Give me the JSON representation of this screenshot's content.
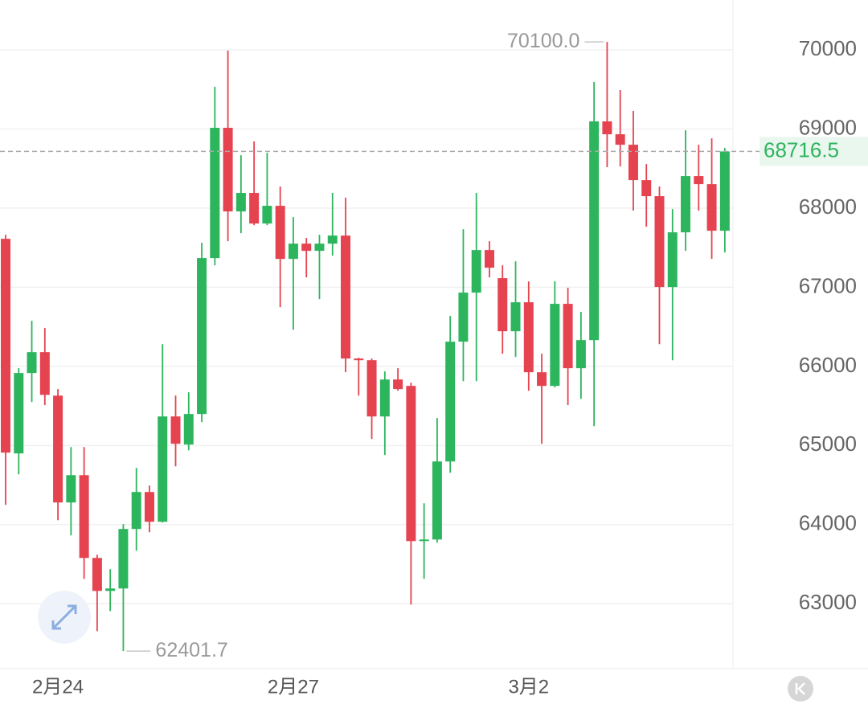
{
  "chart_data": {
    "type": "candlestick",
    "categories": [
      null,
      null,
      null,
      null,
      "2月24",
      null,
      null,
      null,
      null,
      null,
      null,
      null,
      null,
      null,
      null,
      null,
      null,
      null,
      null,
      null,
      null,
      null,
      "2月27",
      null,
      null,
      null,
      null,
      null,
      null,
      null,
      null,
      null,
      null,
      null,
      null,
      null,
      null,
      null,
      null,
      null,
      "3月2",
      null,
      null,
      null,
      null,
      null,
      null,
      null,
      null,
      null,
      null,
      null,
      null,
      null,
      null,
      null
    ],
    "open": [
      67612,
      64900,
      65916,
      66180,
      65630,
      64280,
      64625,
      63579,
      63162,
      63193,
      63945,
      64412,
      64036,
      65367,
      65012,
      65398,
      67369,
      69015,
      67958,
      68192,
      67805,
      68029,
      67358,
      67551,
      67460,
      67551,
      67653,
      66099,
      66078,
      65367,
      65834,
      65753,
      63792,
      63812,
      64798,
      66312,
      66932,
      67470,
      67115,
      66444,
      66810,
      65926,
      65753,
      66790,
      65977,
      66332,
      69096,
      68933,
      68801,
      68354,
      68151,
      67003,
      67694,
      68405,
      68303,
      67714
    ],
    "high": [
      67663,
      65977,
      66576,
      66485,
      65713,
      64980,
      64980,
      63620,
      63437,
      64005,
      64717,
      64494,
      66281,
      65631,
      65672,
      67562,
      69533,
      69990,
      68669,
      68842,
      68700,
      68273,
      67887,
      67623,
      67663,
      68192,
      68131,
      66110,
      66099,
      65936,
      65977,
      65794,
      64270,
      65347,
      66637,
      67734,
      68192,
      67582,
      67277,
      67328,
      67074,
      66160,
      67074,
      66993,
      66688,
      69594,
      70100,
      69492,
      69228,
      68557,
      68273,
      67988,
      68984,
      68801,
      68882,
      68760
    ],
    "low": [
      64250,
      64635,
      65550,
      65510,
      64056,
      63863,
      63315,
      62654,
      62908,
      62401.7,
      63670,
      63904,
      64026,
      64737,
      64940,
      65296,
      67277,
      67582,
      67683,
      67785,
      67785,
      66749,
      66464,
      67125,
      66850,
      67399,
      65926,
      65631,
      65083,
      64880,
      65692,
      62990,
      63315,
      63772,
      64656,
      65814,
      65814,
      67125,
      66160,
      66119,
      65692,
      65022,
      65733,
      65510,
      65590,
      65245,
      68517,
      68527,
      67968,
      67765,
      66281,
      66078,
      67460,
      67968,
      67358,
      67440
    ],
    "close": [
      64910,
      65916,
      66180,
      65640,
      64280,
      64625,
      63579,
      63162,
      63193,
      63945,
      64412,
      64036,
      65367,
      65022,
      65398,
      67369,
      69015,
      67958,
      68192,
      67805,
      68029,
      67358,
      67551,
      67460,
      67551,
      67653,
      66099,
      66078,
      65367,
      65834,
      65713,
      63792,
      63812,
      64798,
      66312,
      66932,
      67470,
      67247,
      66444,
      66810,
      65926,
      65753,
      66790,
      65977,
      66332,
      69096,
      68933,
      68801,
      68354,
      68151,
      67003,
      67694,
      68405,
      68303,
      67714,
      68716.5
    ],
    "up_color": "#2db55d",
    "down_color": "#e5434f",
    "max_label": "70100.0",
    "ylim": [
      62180,
      70630
    ],
    "yticks": [
      63000,
      64000,
      65000,
      66000,
      67000,
      68000,
      69000,
      70000
    ],
    "grid": true
  }
}
